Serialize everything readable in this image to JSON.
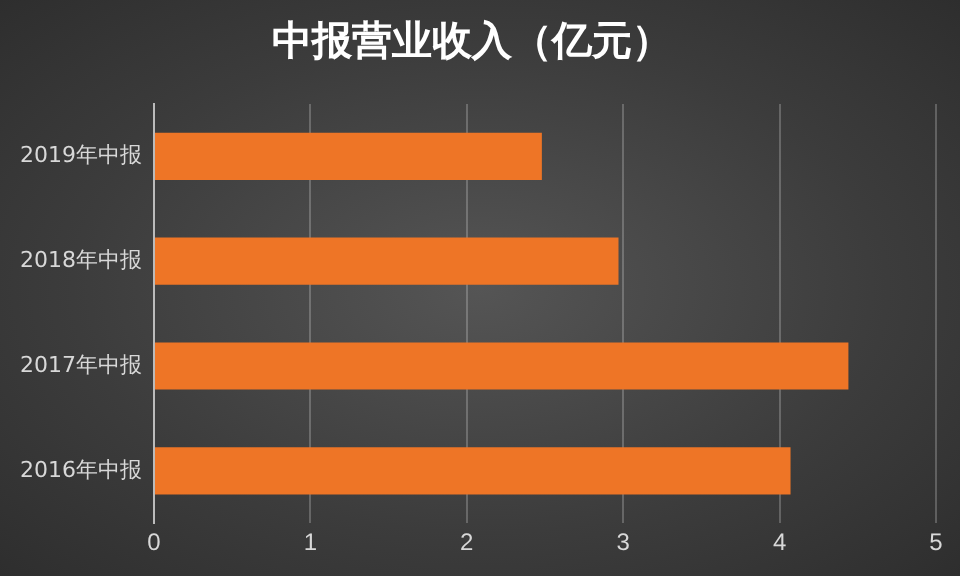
{
  "chart_data": {
    "type": "bar",
    "orientation": "horizontal",
    "title": "中报营业收入（亿元）",
    "categories": [
      "2019年中报",
      "2018年中报",
      "2017年中报",
      "2016年中报"
    ],
    "values": [
      2.48,
      2.97,
      4.44,
      4.07
    ],
    "color": "#ee7526",
    "xlim": [
      0,
      5
    ],
    "xticks": [
      0,
      1,
      2,
      3,
      4,
      5
    ],
    "grid": "x",
    "legend": false
  }
}
